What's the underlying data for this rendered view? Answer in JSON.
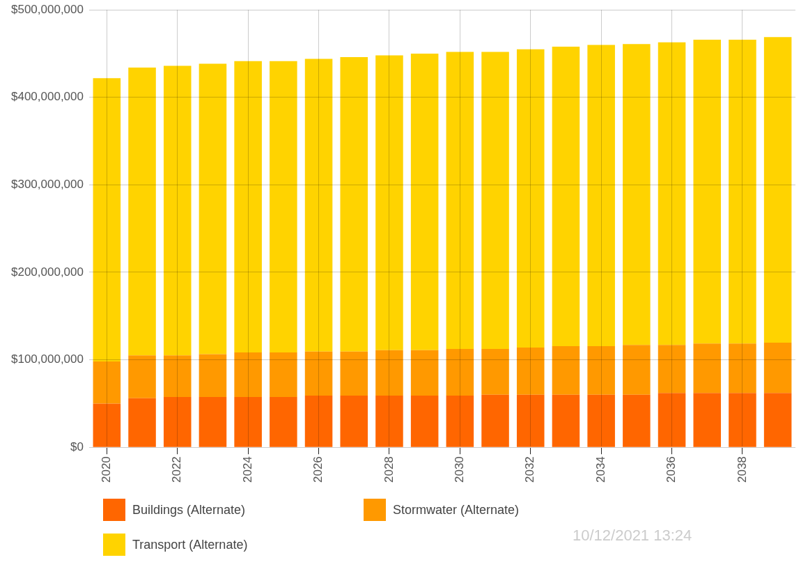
{
  "chart_data": {
    "type": "bar",
    "stacked": true,
    "categories": [
      "2020",
      null,
      "2022",
      null,
      "2024",
      null,
      "2026",
      null,
      "2028",
      null,
      "2030",
      null,
      "2032",
      null,
      "2034",
      null,
      "2036",
      null,
      "2038",
      null
    ],
    "series": [
      {
        "name": "Buildings (Alternate)",
        "color": "#ff6600",
        "values": [
          50000000,
          56000000,
          57500000,
          57500000,
          57500000,
          57500000,
          59000000,
          59000000,
          59000000,
          59000000,
          59000000,
          60000000,
          60000000,
          60000000,
          60000000,
          60000000,
          62000000,
          62000000,
          62000000,
          62000000
        ]
      },
      {
        "name": "Stormwater (Alternate)",
        "color": "#ff9900",
        "values": [
          48000000,
          49000000,
          47500000,
          49000000,
          51000000,
          51000000,
          50500000,
          50500000,
          52000000,
          52000000,
          53500000,
          52500000,
          54000000,
          55500000,
          55500000,
          57000000,
          55000000,
          56500000,
          56500000,
          57500000
        ]
      },
      {
        "name": "Transport (Alternate)",
        "color": "#ffd300",
        "values": [
          324000000,
          329000000,
          331000000,
          332000000,
          333000000,
          333000000,
          334500000,
          336500000,
          337000000,
          339000000,
          339500000,
          339500000,
          341000000,
          342500000,
          344500000,
          344000000,
          346000000,
          347500000,
          347500000,
          349500000
        ]
      }
    ],
    "ylim": [
      0,
      500000000
    ],
    "yticks": [
      {
        "value": 0,
        "label": "$0"
      },
      {
        "value": 100000000,
        "label": "$100,000,000"
      },
      {
        "value": 200000000,
        "label": "$200,000,000"
      },
      {
        "value": 300000000,
        "label": "$300,000,000"
      },
      {
        "value": 400000000,
        "label": "$400,000,000"
      },
      {
        "value": 500000000,
        "label": "$500,000,000"
      }
    ],
    "grid": true,
    "legend": "bottom left",
    "annotations": [
      "10/12/2021 13:24"
    ]
  }
}
